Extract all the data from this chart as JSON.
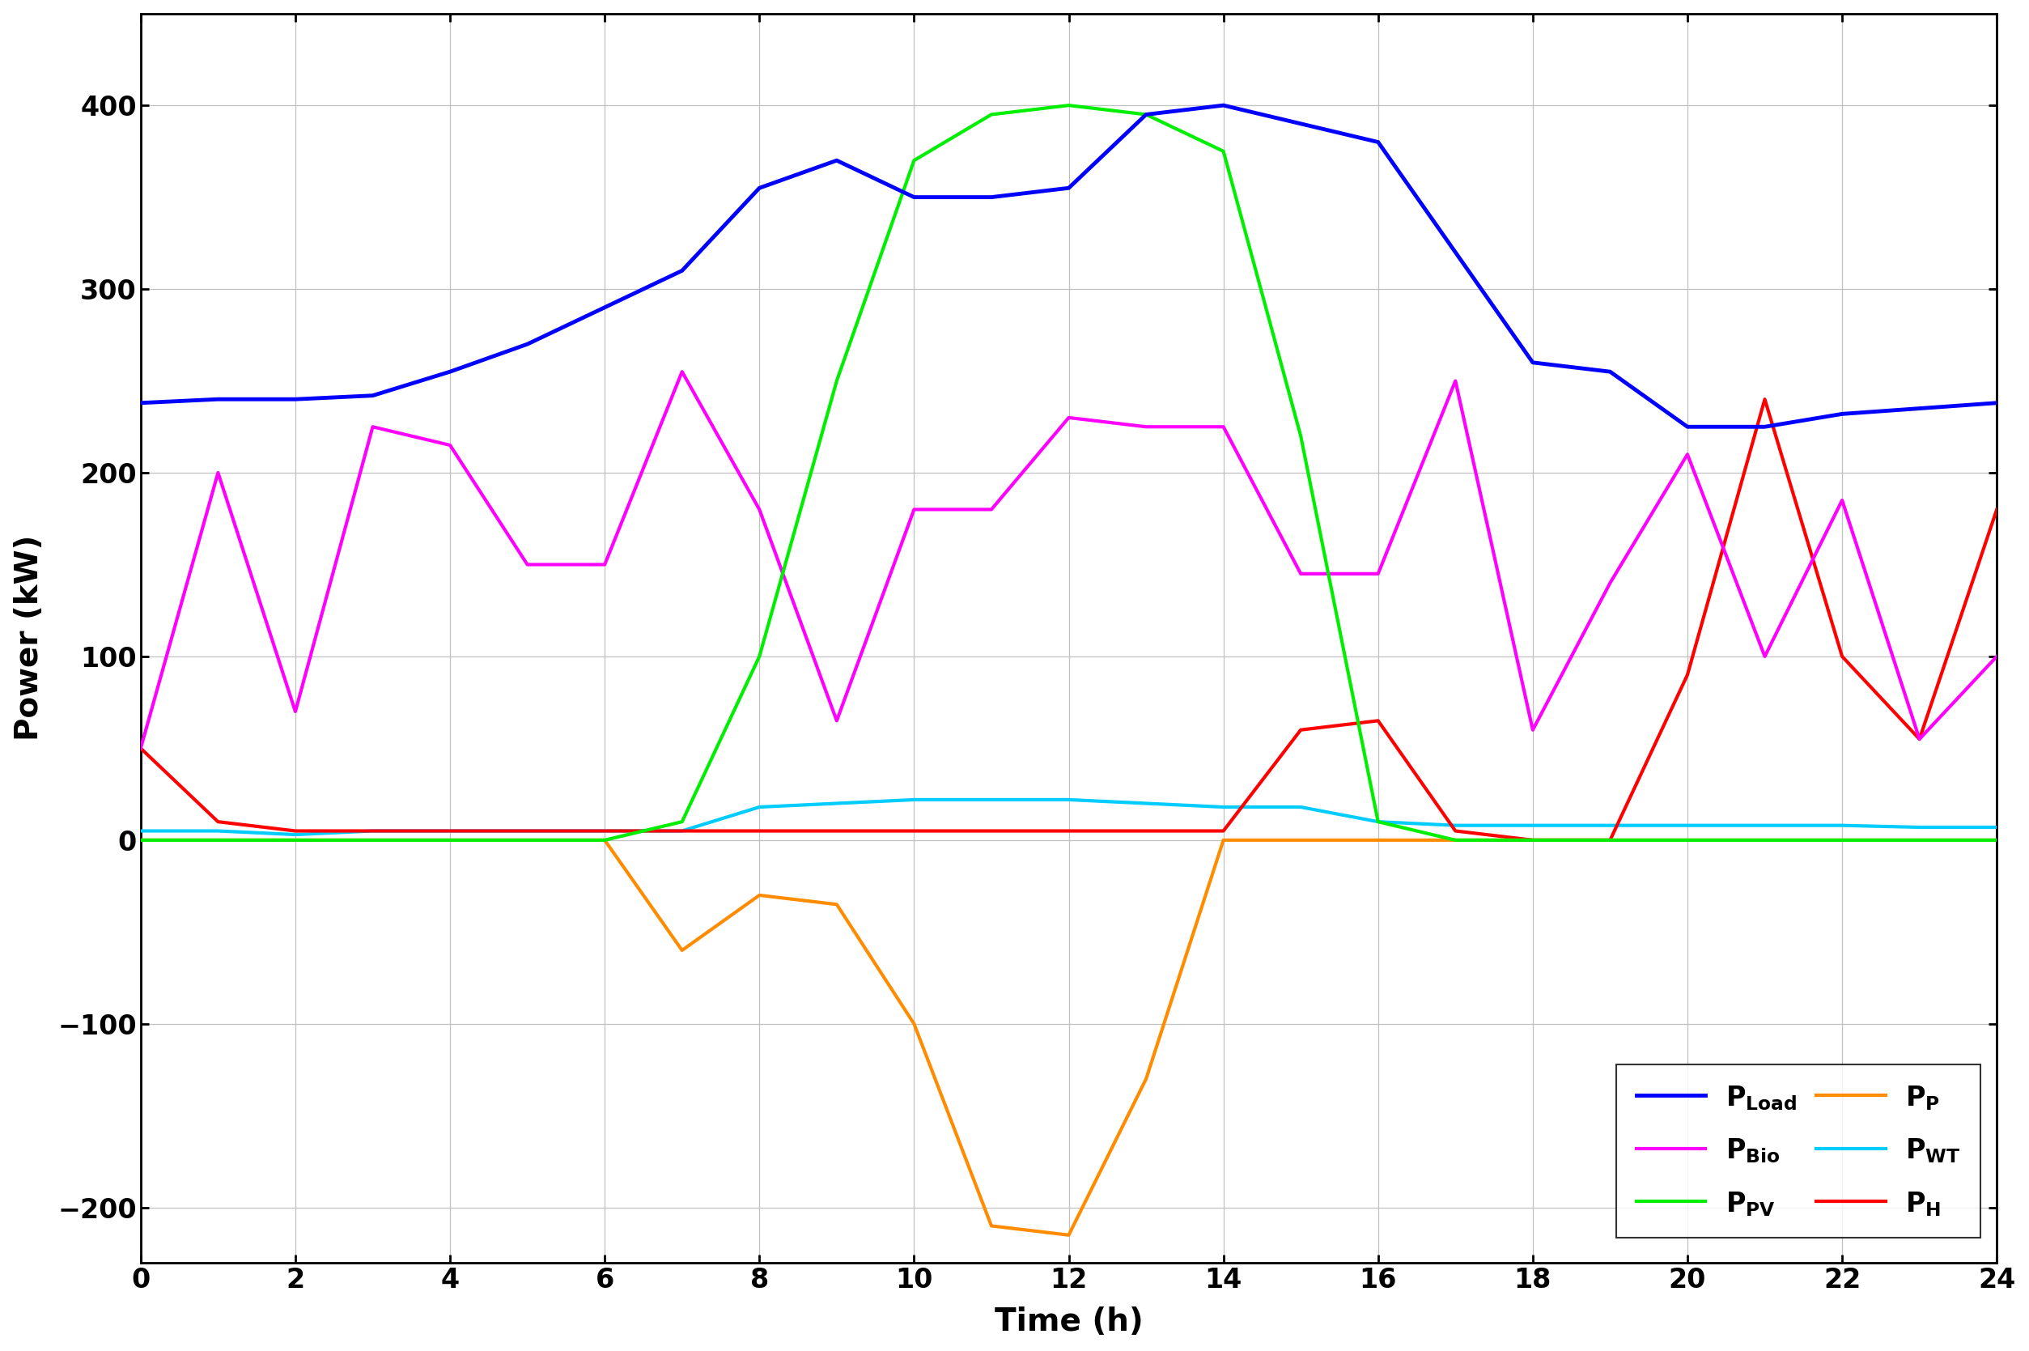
{
  "time": [
    0,
    1,
    2,
    3,
    4,
    5,
    6,
    7,
    8,
    9,
    10,
    11,
    12,
    13,
    14,
    15,
    16,
    17,
    18,
    19,
    20,
    21,
    22,
    23,
    24
  ],
  "P_Load": [
    238,
    240,
    240,
    242,
    255,
    270,
    290,
    310,
    355,
    370,
    350,
    350,
    355,
    395,
    400,
    390,
    380,
    320,
    260,
    255,
    225,
    225,
    232,
    235,
    238
  ],
  "P_Bio": [
    50,
    200,
    70,
    225,
    215,
    150,
    150,
    255,
    180,
    65,
    180,
    180,
    230,
    225,
    225,
    145,
    145,
    250,
    60,
    140,
    210,
    100,
    185,
    55,
    100
  ],
  "P_PV": [
    0,
    0,
    0,
    0,
    0,
    0,
    0,
    10,
    100,
    250,
    370,
    395,
    400,
    395,
    375,
    220,
    10,
    0,
    0,
    0,
    0,
    0,
    0,
    0,
    0
  ],
  "P_P": [
    0,
    0,
    0,
    0,
    0,
    0,
    0,
    -60,
    -30,
    -35,
    -100,
    -210,
    -215,
    -130,
    0,
    0,
    0,
    0,
    0,
    0,
    0,
    0,
    0,
    0,
    0
  ],
  "P_WT": [
    5,
    5,
    3,
    5,
    5,
    5,
    5,
    5,
    18,
    20,
    22,
    22,
    22,
    20,
    18,
    18,
    10,
    8,
    8,
    8,
    8,
    8,
    8,
    7,
    7
  ],
  "P_H": [
    50,
    10,
    5,
    5,
    5,
    5,
    5,
    5,
    5,
    5,
    5,
    5,
    5,
    5,
    5,
    60,
    65,
    5,
    0,
    0,
    90,
    240,
    100,
    55,
    180
  ],
  "colors": {
    "P_Load": "#0000FF",
    "P_Bio": "#FF00FF",
    "P_PV": "#00EE00",
    "P_P": "#FF8C00",
    "P_WT": "#00CCFF",
    "P_H": "#FF0000"
  },
  "linewidth": 3.0,
  "xlabel": "Time (h)",
  "ylabel": "Power (kW)",
  "xlim": [
    0,
    24
  ],
  "ylim": [
    -230,
    450
  ],
  "xticks": [
    0,
    2,
    4,
    6,
    8,
    10,
    12,
    14,
    16,
    18,
    20,
    22,
    24
  ],
  "yticks": [
    -200,
    -100,
    0,
    100,
    200,
    300,
    400
  ],
  "background": "#FFFFFF"
}
